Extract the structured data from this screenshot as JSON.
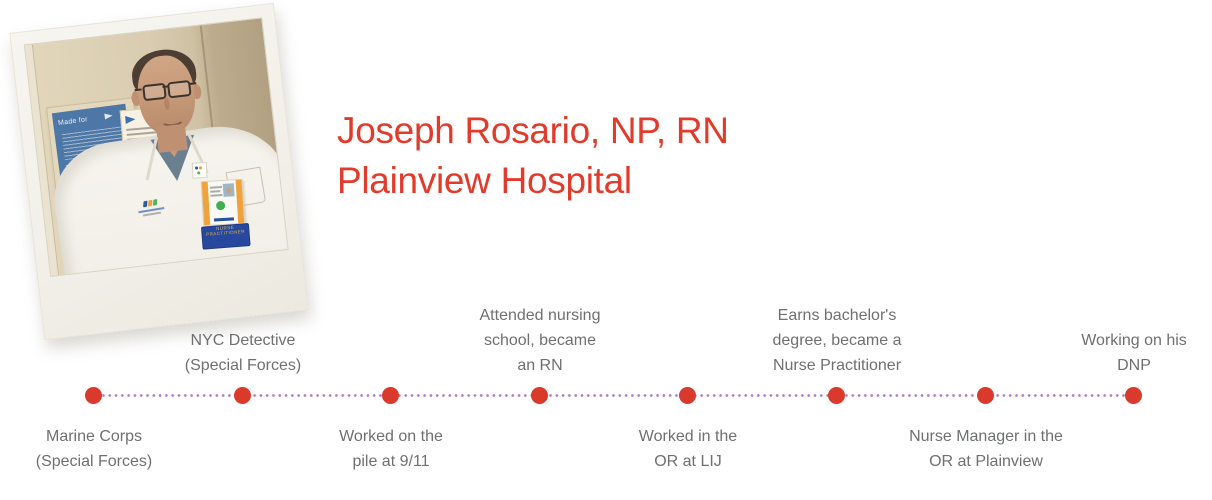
{
  "header": {
    "name": "Joseph Rosario, NP, RN",
    "hospital": "Plainview Hospital"
  },
  "colors": {
    "accent_red": "#e23a2b",
    "dot_red": "#d93a2b",
    "connector_purple": "#b083c4",
    "label_gray": "#6e7071"
  },
  "photo": {
    "poster_heading": "Made for",
    "badge_line1": "NURSE",
    "badge_line2": "PRACTITIONER"
  },
  "timeline": {
    "events": [
      {
        "label": "Marine Corps\n(Special Forces)",
        "position": "below"
      },
      {
        "label": "NYC Detective\n(Special Forces)",
        "position": "above"
      },
      {
        "label": "Worked on the\npile at 9/11",
        "position": "below"
      },
      {
        "label": "Attended nursing\nschool, became\nan RN",
        "position": "above"
      },
      {
        "label": "Worked in the\nOR at LIJ",
        "position": "below"
      },
      {
        "label": "Earns bachelor's\ndegree, became a\nNurse Practitioner",
        "position": "above"
      },
      {
        "label": "Nurse Manager in the\nOR at Plainview",
        "position": "below"
      },
      {
        "label": "Working on his\nDNP",
        "position": "above"
      }
    ]
  }
}
